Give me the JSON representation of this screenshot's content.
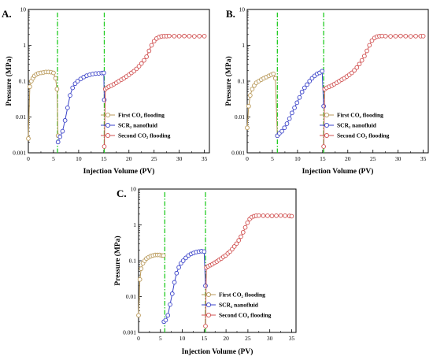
{
  "colors": {
    "first_co2": "#b89858",
    "scr2": "#3a42c8",
    "second_co2": "#d05050",
    "divider": "#22cc22"
  },
  "chart_data": [
    {
      "type": "scatter",
      "panel_label": "A.",
      "xlabel": "Injection Volume (PV)",
      "ylabel": "Pressure (MPa)",
      "xlim": [
        0,
        36
      ],
      "ylim": [
        0.001,
        10
      ],
      "yscale": "log",
      "x_ticks": [
        0,
        5,
        10,
        15,
        20,
        25,
        30,
        35
      ],
      "y_ticks": [
        0.001,
        0.01,
        0.1,
        1,
        10
      ],
      "y_tick_labels": [
        "0.001",
        "0.01",
        "0.1",
        "1",
        "10"
      ],
      "legend_position": "lower-right",
      "dividers_x": [
        5.8,
        15.1
      ],
      "series": [
        {
          "name": "First CO2 flooding",
          "legend_label": "First CO₂ flooding",
          "color_key": "first_co2",
          "x": [
            0,
            0.3,
            0.6,
            0.9,
            1.2,
            1.6,
            2.0,
            2.5,
            3.0,
            3.5,
            4.0,
            4.5,
            5.0,
            5.4,
            5.7,
            5.9
          ],
          "y": [
            0.0025,
            0.07,
            0.1,
            0.12,
            0.14,
            0.155,
            0.165,
            0.17,
            0.175,
            0.18,
            0.18,
            0.178,
            0.17,
            0.12,
            0.06,
            0.003
          ]
        },
        {
          "name": "SCR2 nanofluid",
          "legend_label": "SCR₂ nanofluid",
          "color_key": "scr2",
          "x": [
            5.9,
            6.3,
            6.8,
            7.3,
            7.8,
            8.3,
            8.8,
            9.3,
            9.8,
            10.4,
            11.0,
            11.6,
            12.2,
            12.8,
            13.4,
            14.0,
            14.6,
            15.0,
            15.1
          ],
          "y": [
            0.002,
            0.0028,
            0.004,
            0.008,
            0.018,
            0.04,
            0.065,
            0.085,
            0.1,
            0.115,
            0.13,
            0.142,
            0.15,
            0.158,
            0.163,
            0.165,
            0.168,
            0.17,
            0.03
          ]
        },
        {
          "name": "Second CO2 flooding",
          "legend_label": "Second CO₂ flooding",
          "color_key": "second_co2",
          "x": [
            15.1,
            15.3,
            15.6,
            16.0,
            16.5,
            17.0,
            17.5,
            18.0,
            18.5,
            19.0,
            19.5,
            20.0,
            20.5,
            21.0,
            21.5,
            22.0,
            22.5,
            23.0,
            23.5,
            24.0,
            24.5,
            25.0,
            25.5,
            26.0,
            26.5,
            27.0,
            27.5,
            28.0,
            29.0,
            30.0,
            31.0,
            32.0,
            33.0,
            34.0,
            35.0
          ],
          "y": [
            0.0015,
            0.06,
            0.065,
            0.07,
            0.075,
            0.082,
            0.09,
            0.1,
            0.11,
            0.12,
            0.135,
            0.15,
            0.17,
            0.19,
            0.22,
            0.26,
            0.31,
            0.38,
            0.48,
            0.7,
            1.0,
            1.3,
            1.55,
            1.7,
            1.78,
            1.8,
            1.8,
            1.82,
            1.8,
            1.8,
            1.81,
            1.8,
            1.78,
            1.8,
            1.8
          ]
        }
      ]
    },
    {
      "type": "scatter",
      "panel_label": "B.",
      "xlabel": "Injection Volume (PV)",
      "ylabel": "Pressure (MPa)",
      "xlim": [
        0,
        36
      ],
      "ylim": [
        0.001,
        10
      ],
      "yscale": "log",
      "x_ticks": [
        0,
        5,
        10,
        15,
        20,
        25,
        30,
        35
      ],
      "y_ticks": [
        0.001,
        0.01,
        0.1,
        1,
        10
      ],
      "y_tick_labels": [
        "0.001",
        "0.01",
        "0.1",
        "1",
        "10"
      ],
      "legend_position": "lower-right",
      "dividers_x": [
        6.0,
        15.2
      ],
      "series": [
        {
          "name": "First CO2 flooding",
          "legend_label": "First CO₂ flooding",
          "color_key": "first_co2",
          "x": [
            0,
            0.3,
            0.6,
            1.0,
            1.4,
            1.8,
            2.3,
            2.8,
            3.3,
            3.8,
            4.3,
            4.8,
            5.2,
            5.6,
            6.0
          ],
          "y": [
            0.005,
            0.02,
            0.04,
            0.06,
            0.075,
            0.09,
            0.1,
            0.11,
            0.12,
            0.13,
            0.14,
            0.15,
            0.16,
            0.12,
            0.003
          ]
        },
        {
          "name": "SCR2 nanofluid",
          "legend_label": "SCR₂ nanofluid",
          "color_key": "scr2",
          "x": [
            6.0,
            6.4,
            6.9,
            7.4,
            7.9,
            8.4,
            8.9,
            9.4,
            9.9,
            10.4,
            10.9,
            11.4,
            11.9,
            12.4,
            12.9,
            13.4,
            13.9,
            14.4,
            14.9,
            15.2
          ],
          "y": [
            0.003,
            0.0035,
            0.004,
            0.005,
            0.0065,
            0.009,
            0.013,
            0.018,
            0.025,
            0.035,
            0.05,
            0.065,
            0.08,
            0.1,
            0.12,
            0.14,
            0.16,
            0.17,
            0.19,
            0.02
          ]
        },
        {
          "name": "Second CO2 flooding",
          "legend_label": "Second CO₂ flooding",
          "color_key": "second_co2",
          "x": [
            15.2,
            15.4,
            15.8,
            16.3,
            16.8,
            17.3,
            17.8,
            18.3,
            18.8,
            19.3,
            19.8,
            20.3,
            20.8,
            21.3,
            21.8,
            22.3,
            22.8,
            23.3,
            23.8,
            24.3,
            24.8,
            25.3,
            25.8,
            26.3,
            26.8,
            27.5,
            28.5,
            29.5,
            30.5,
            31.5,
            32.5,
            33.5,
            34.5,
            35.0
          ],
          "y": [
            0.0015,
            0.06,
            0.065,
            0.07,
            0.075,
            0.082,
            0.09,
            0.1,
            0.11,
            0.12,
            0.135,
            0.15,
            0.17,
            0.2,
            0.24,
            0.3,
            0.38,
            0.5,
            0.7,
            1.0,
            1.35,
            1.6,
            1.75,
            1.8,
            1.82,
            1.8,
            1.78,
            1.8,
            1.82,
            1.8,
            1.78,
            1.8,
            1.8,
            1.8
          ]
        }
      ]
    },
    {
      "type": "scatter",
      "panel_label": "C.",
      "xlabel": "Injection Volume (PV)",
      "ylabel": "Pressure (MPa)",
      "xlim": [
        0,
        36
      ],
      "ylim": [
        0.001,
        10
      ],
      "yscale": "log",
      "x_ticks": [
        0,
        5,
        10,
        15,
        20,
        25,
        30,
        35
      ],
      "y_ticks": [
        0.001,
        0.01,
        0.1,
        1,
        10
      ],
      "y_tick_labels": [
        "0.001",
        "0.01",
        "0.1",
        "1",
        "10"
      ],
      "legend_position": "lower-right",
      "dividers_x": [
        6.0,
        15.3
      ],
      "series": [
        {
          "name": "First CO2 flooding",
          "legend_label": "First CO₂ flooding",
          "color_key": "first_co2",
          "x": [
            0,
            0.3,
            0.6,
            1.0,
            1.4,
            1.8,
            2.3,
            2.8,
            3.3,
            3.8,
            4.3,
            4.8,
            5.3,
            5.7
          ],
          "y": [
            0.003,
            0.03,
            0.06,
            0.085,
            0.1,
            0.115,
            0.125,
            0.135,
            0.14,
            0.145,
            0.145,
            0.145,
            0.14,
            0.14
          ]
        },
        {
          "name": "SCR2 nanofluid",
          "legend_label": "SCR₂ nanofluid",
          "color_key": "scr2",
          "x": [
            5.8,
            6.2,
            6.7,
            7.2,
            7.7,
            8.2,
            8.7,
            9.2,
            9.7,
            10.2,
            10.8,
            11.4,
            12.0,
            12.6,
            13.2,
            13.8,
            14.4,
            15.0,
            15.3
          ],
          "y": [
            0.002,
            0.0022,
            0.003,
            0.006,
            0.012,
            0.025,
            0.045,
            0.065,
            0.085,
            0.1,
            0.12,
            0.14,
            0.155,
            0.165,
            0.175,
            0.18,
            0.185,
            0.18,
            0.02
          ]
        },
        {
          "name": "Second CO2 flooding",
          "legend_label": "Second CO₂ flooding",
          "color_key": "second_co2",
          "x": [
            15.3,
            15.5,
            15.9,
            16.4,
            16.9,
            17.4,
            17.9,
            18.4,
            18.9,
            19.4,
            19.9,
            20.4,
            20.9,
            21.4,
            21.9,
            22.4,
            22.9,
            23.4,
            23.9,
            24.4,
            24.9,
            25.4,
            25.9,
            26.4,
            26.9,
            27.5,
            28.5,
            29.5,
            30.5,
            31.5,
            32.5,
            33.5,
            34.5,
            35.0
          ],
          "y": [
            0.0015,
            0.065,
            0.07,
            0.075,
            0.08,
            0.088,
            0.095,
            0.105,
            0.115,
            0.128,
            0.14,
            0.16,
            0.18,
            0.21,
            0.25,
            0.3,
            0.37,
            0.47,
            0.62,
            0.85,
            1.15,
            1.45,
            1.65,
            1.75,
            1.8,
            1.82,
            1.8,
            1.8,
            1.78,
            1.8,
            1.82,
            1.8,
            1.78,
            1.75
          ]
        }
      ]
    }
  ]
}
